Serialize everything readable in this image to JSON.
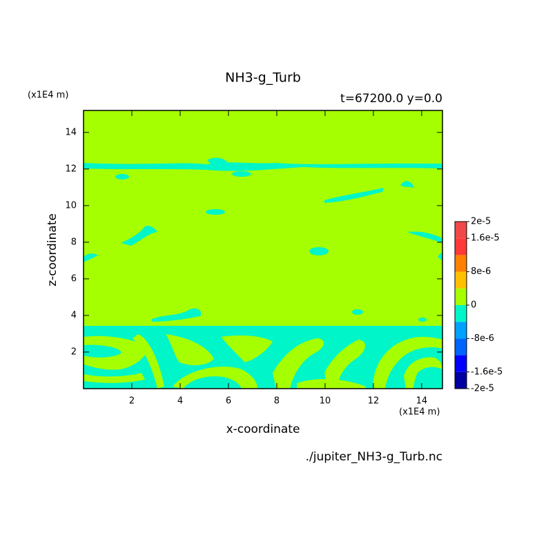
{
  "chart_data": {
    "type": "contour",
    "title": "NH3-g_Turb",
    "subtitle": "t=67200.0 y=0.0",
    "xlabel": "x-coordinate",
    "ylabel": "z-coordinate",
    "xunit": "(x1E4 m)",
    "yunit": "(x1E4 m)",
    "source": "./jupiter_NH3-g_Turb.nc",
    "xlim": [
      0,
      14.86
    ],
    "ylim": [
      0,
      15.2
    ],
    "xticks": [
      2,
      4,
      6,
      8,
      10,
      12,
      14
    ],
    "yticks": [
      2,
      4,
      6,
      8,
      10,
      12,
      14
    ],
    "levels": [
      -2e-05,
      -1.6e-05,
      -1.2e-05,
      -8e-06,
      -4e-06,
      0,
      4e-06,
      8e-06,
      1.2e-05,
      1.6e-05,
      2e-05
    ],
    "colors": [
      "#0000a0",
      "#0000ff",
      "#0064ff",
      "#00a0ff",
      "#00f5c8",
      "#a5ff00",
      "#ffc000",
      "#ff8000",
      "#ff3838",
      "#f04848"
    ],
    "colorbar_ticks": [
      {
        "value": -2e-05,
        "label": "-2e-5"
      },
      {
        "value": -1.6e-05,
        "label": "-1.6e-5"
      },
      {
        "value": -8e-06,
        "label": "-8e-6"
      },
      0,
      {
        "value": 8e-06,
        "label": "8e-6"
      },
      {
        "value": 1.6e-05,
        "label": "1.6e-5"
      },
      {
        "value": 2e-05,
        "label": "2e-5"
      }
    ]
  }
}
